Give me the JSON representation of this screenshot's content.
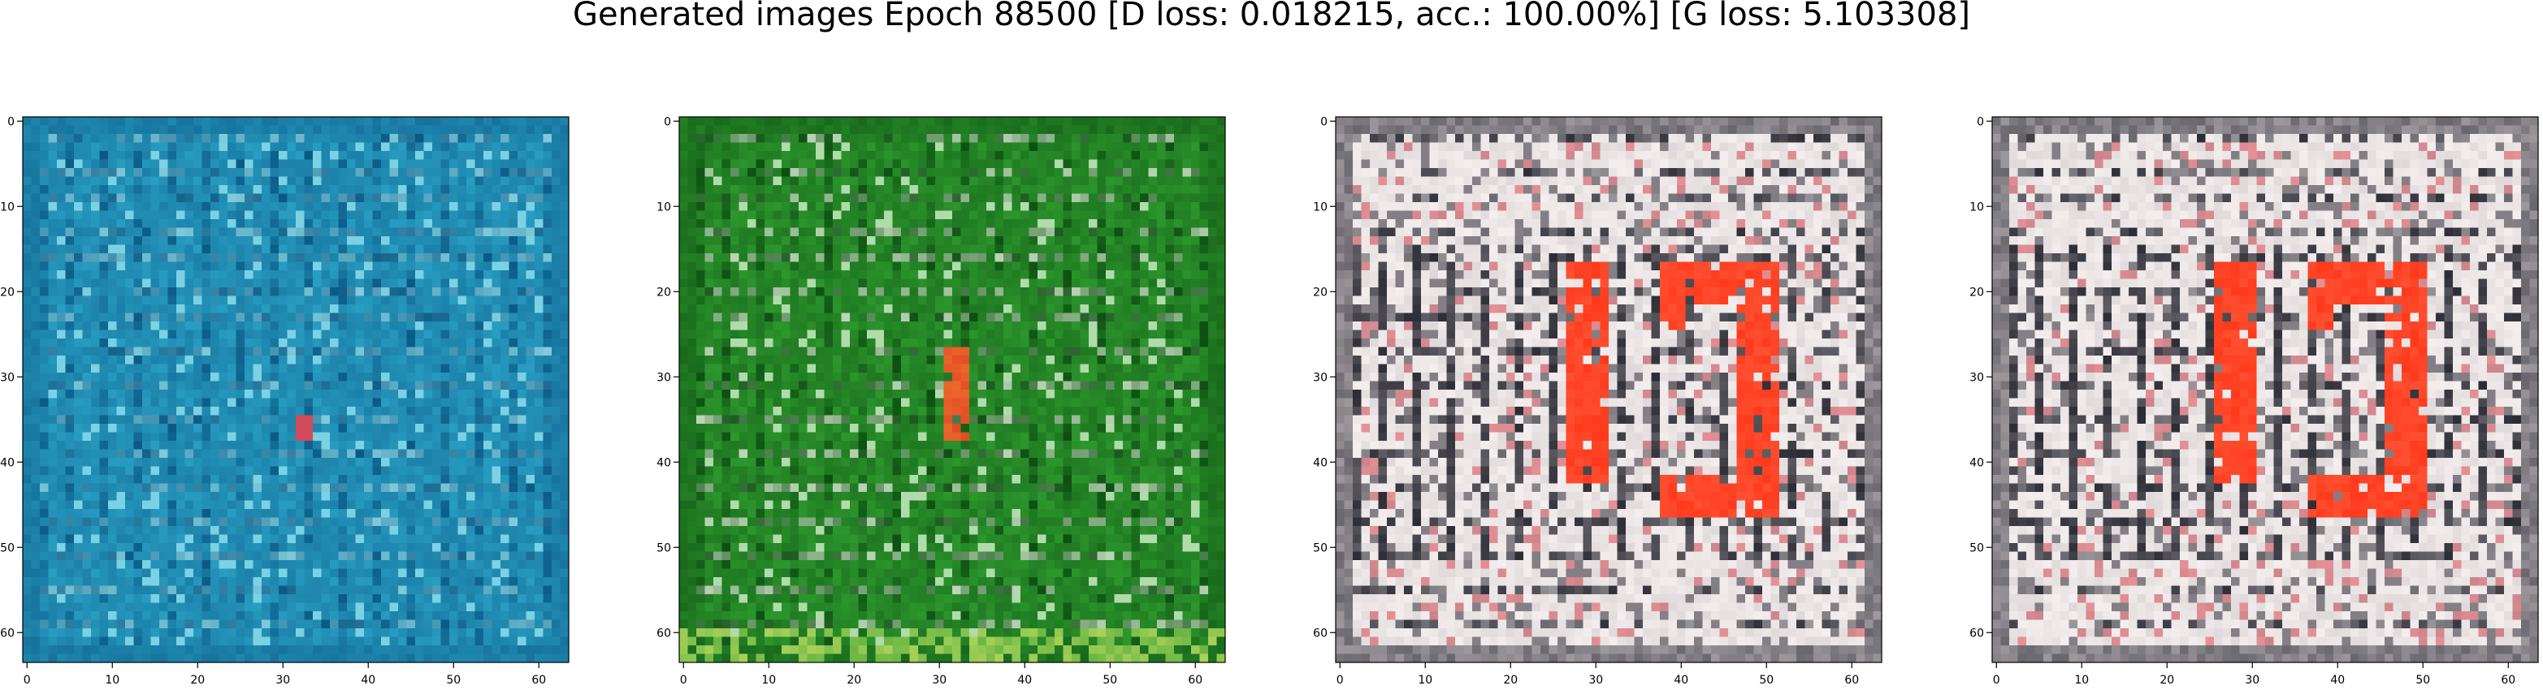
{
  "figure": {
    "title": "Generated images Epoch 88500 [D loss: 0.018215, acc.: 100.00%] [G loss: 5.103308]"
  },
  "axes": {
    "x_ticks": [
      "0",
      "10",
      "20",
      "30",
      "40",
      "50",
      "60"
    ],
    "y_ticks": [
      "0",
      "10",
      "20",
      "30",
      "40",
      "50",
      "60"
    ],
    "extent": [
      -0.5,
      63.5
    ]
  },
  "panels": [
    {
      "id": "sample-1",
      "description_colors": {
        "base": "#2aa0c4",
        "dark": "#0b5a86",
        "light": "#9ee8f2",
        "accent": "#d24a5a"
      },
      "has_red_shape": false
    },
    {
      "id": "sample-2",
      "description_colors": {
        "base": "#2e9a2e",
        "dark": "#0d4f12",
        "light": "#e8f8e0",
        "accent": "#e04a22"
      },
      "has_red_shape": false
    },
    {
      "id": "sample-3",
      "description_colors": {
        "base": "#d9d2d4",
        "dark": "#2c2c34",
        "light": "#f4eeee",
        "accent": "#ff3a1c"
      },
      "has_red_shape": true
    },
    {
      "id": "sample-4",
      "description_colors": {
        "base": "#d9d2d4",
        "dark": "#2c2c34",
        "light": "#f4eeee",
        "accent": "#ff3a1c"
      },
      "has_red_shape": true
    }
  ]
}
